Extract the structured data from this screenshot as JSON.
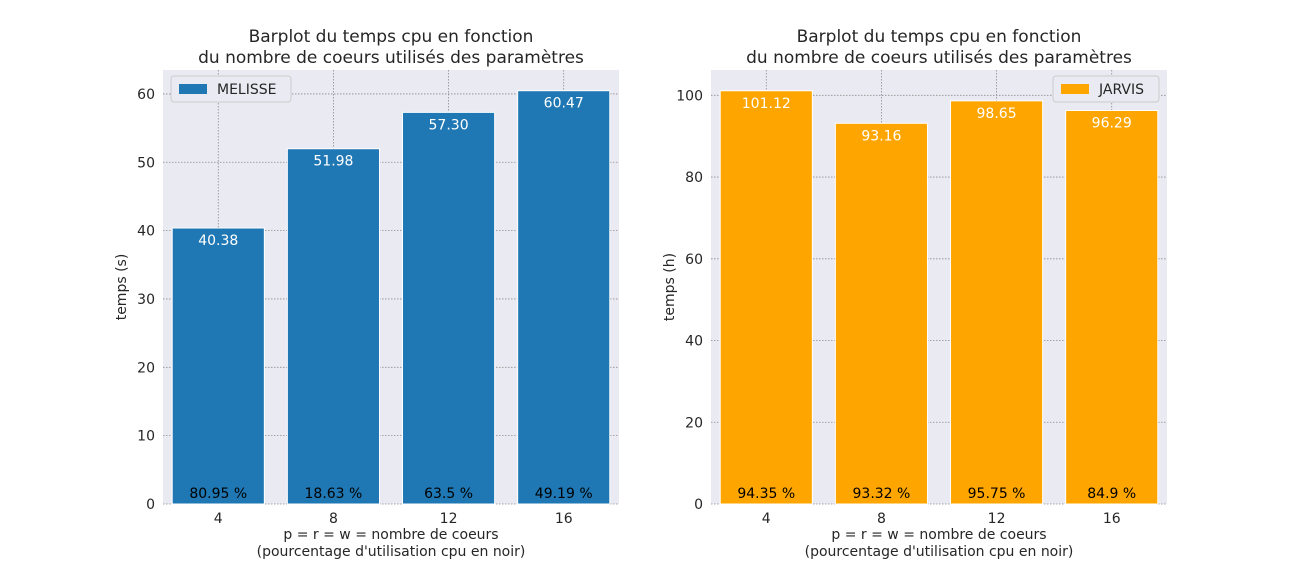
{
  "chart_data": [
    {
      "type": "bar",
      "title_line1": "Barplot du temps cpu en fonction",
      "title_line2": "du nombre de coeurs utilisés des paramètres",
      "xlabel_line1": "p = r = w = nombre de coeurs",
      "xlabel_line2": "(pourcentage d'utilisation cpu en noir)",
      "ylabel": "temps (s)",
      "categories": [
        "4",
        "8",
        "12",
        "16"
      ],
      "series": [
        {
          "name": "MELISSE",
          "values": [
            40.38,
            51.98,
            57.3,
            60.47
          ],
          "value_labels": [
            "40.38",
            "51.98",
            "57.30",
            "60.47"
          ],
          "cpu_labels": [
            "80.95 %",
            "18.63 %",
            "63.5 %",
            "49.19 %"
          ],
          "color": "#1f77b4"
        }
      ],
      "ylim": [
        0,
        63.5
      ],
      "yticks": [
        0,
        10,
        20,
        30,
        40,
        50,
        60
      ],
      "legend": "upper-left",
      "grid": true,
      "background": "#eaeaf2",
      "grid_color": "#8c8c8c"
    },
    {
      "type": "bar",
      "title_line1": "Barplot du temps cpu en fonction",
      "title_line2": "du nombre de coeurs utilisés des paramètres",
      "xlabel_line1": "p = r = w = nombre de coeurs",
      "xlabel_line2": "(pourcentage d'utilisation cpu en noir)",
      "ylabel": "temps (h)",
      "categories": [
        "4",
        "8",
        "12",
        "16"
      ],
      "series": [
        {
          "name": "JARVIS",
          "values": [
            101.12,
            93.16,
            98.65,
            96.29
          ],
          "value_labels": [
            "101.12",
            "93.16",
            "98.65",
            "96.29"
          ],
          "cpu_labels": [
            "94.35 %",
            "93.32 %",
            "95.75 %",
            "84.9 %"
          ],
          "color": "#ffa500"
        }
      ],
      "ylim": [
        0,
        106.2
      ],
      "yticks": [
        0,
        20,
        40,
        60,
        80,
        100
      ],
      "legend": "upper-right",
      "grid": true,
      "background": "#eaeaf2",
      "grid_color": "#8c8c8c"
    }
  ]
}
